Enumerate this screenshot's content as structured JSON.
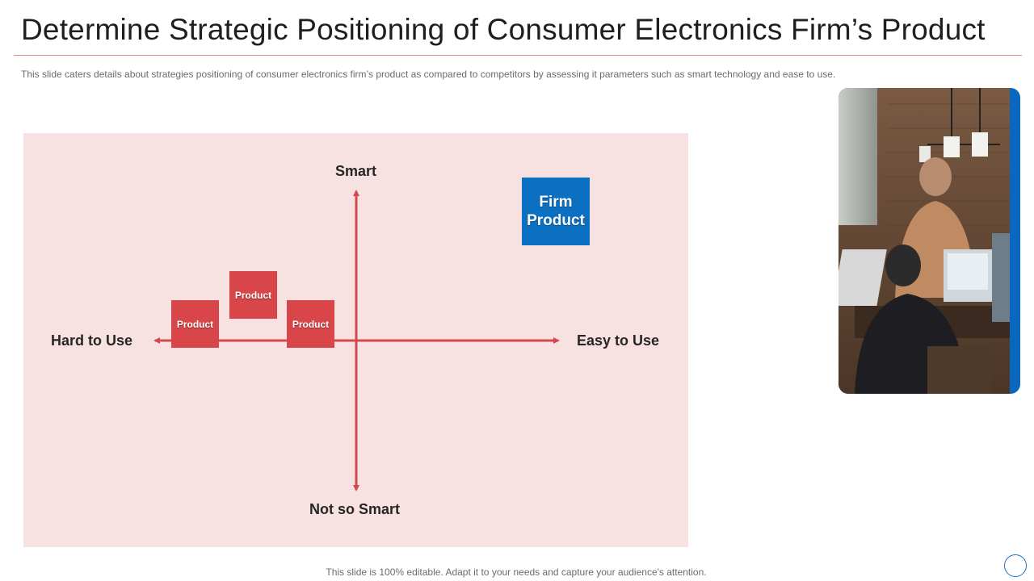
{
  "slide": {
    "title": "Determine Strategic Positioning of Consumer Electronics Firm’s Product",
    "subtitle": "This slide caters details about strategies positioning of consumer electronics firm’s product as compared to competitors by assessing it parameters such as smart technology and ease to use.",
    "footer": "This slide is 100% editable. Adapt it to your needs and capture your audience's attention."
  },
  "matrix": {
    "axis_top": "Smart",
    "axis_bottom": "Not so Smart",
    "axis_left": "Hard to Use",
    "axis_right": "Easy to Use",
    "competitors": [
      {
        "label": "Product"
      },
      {
        "label": "Product"
      },
      {
        "label": "Product"
      }
    ],
    "firm_product": {
      "label_line1": "Firm",
      "label_line2": "Product"
    }
  },
  "colors": {
    "panel_background": "#f8e1e1",
    "axis_arrow": "#d24a4d",
    "competitor_box": "#d94649",
    "firm_box": "#0b6fc2",
    "photo_frame_accent": "#0a67bf",
    "title_rule": "#e08a80"
  },
  "icons": {
    "photo": "team-working-on-laptops-photo",
    "nav": "circle-outline-icon"
  }
}
